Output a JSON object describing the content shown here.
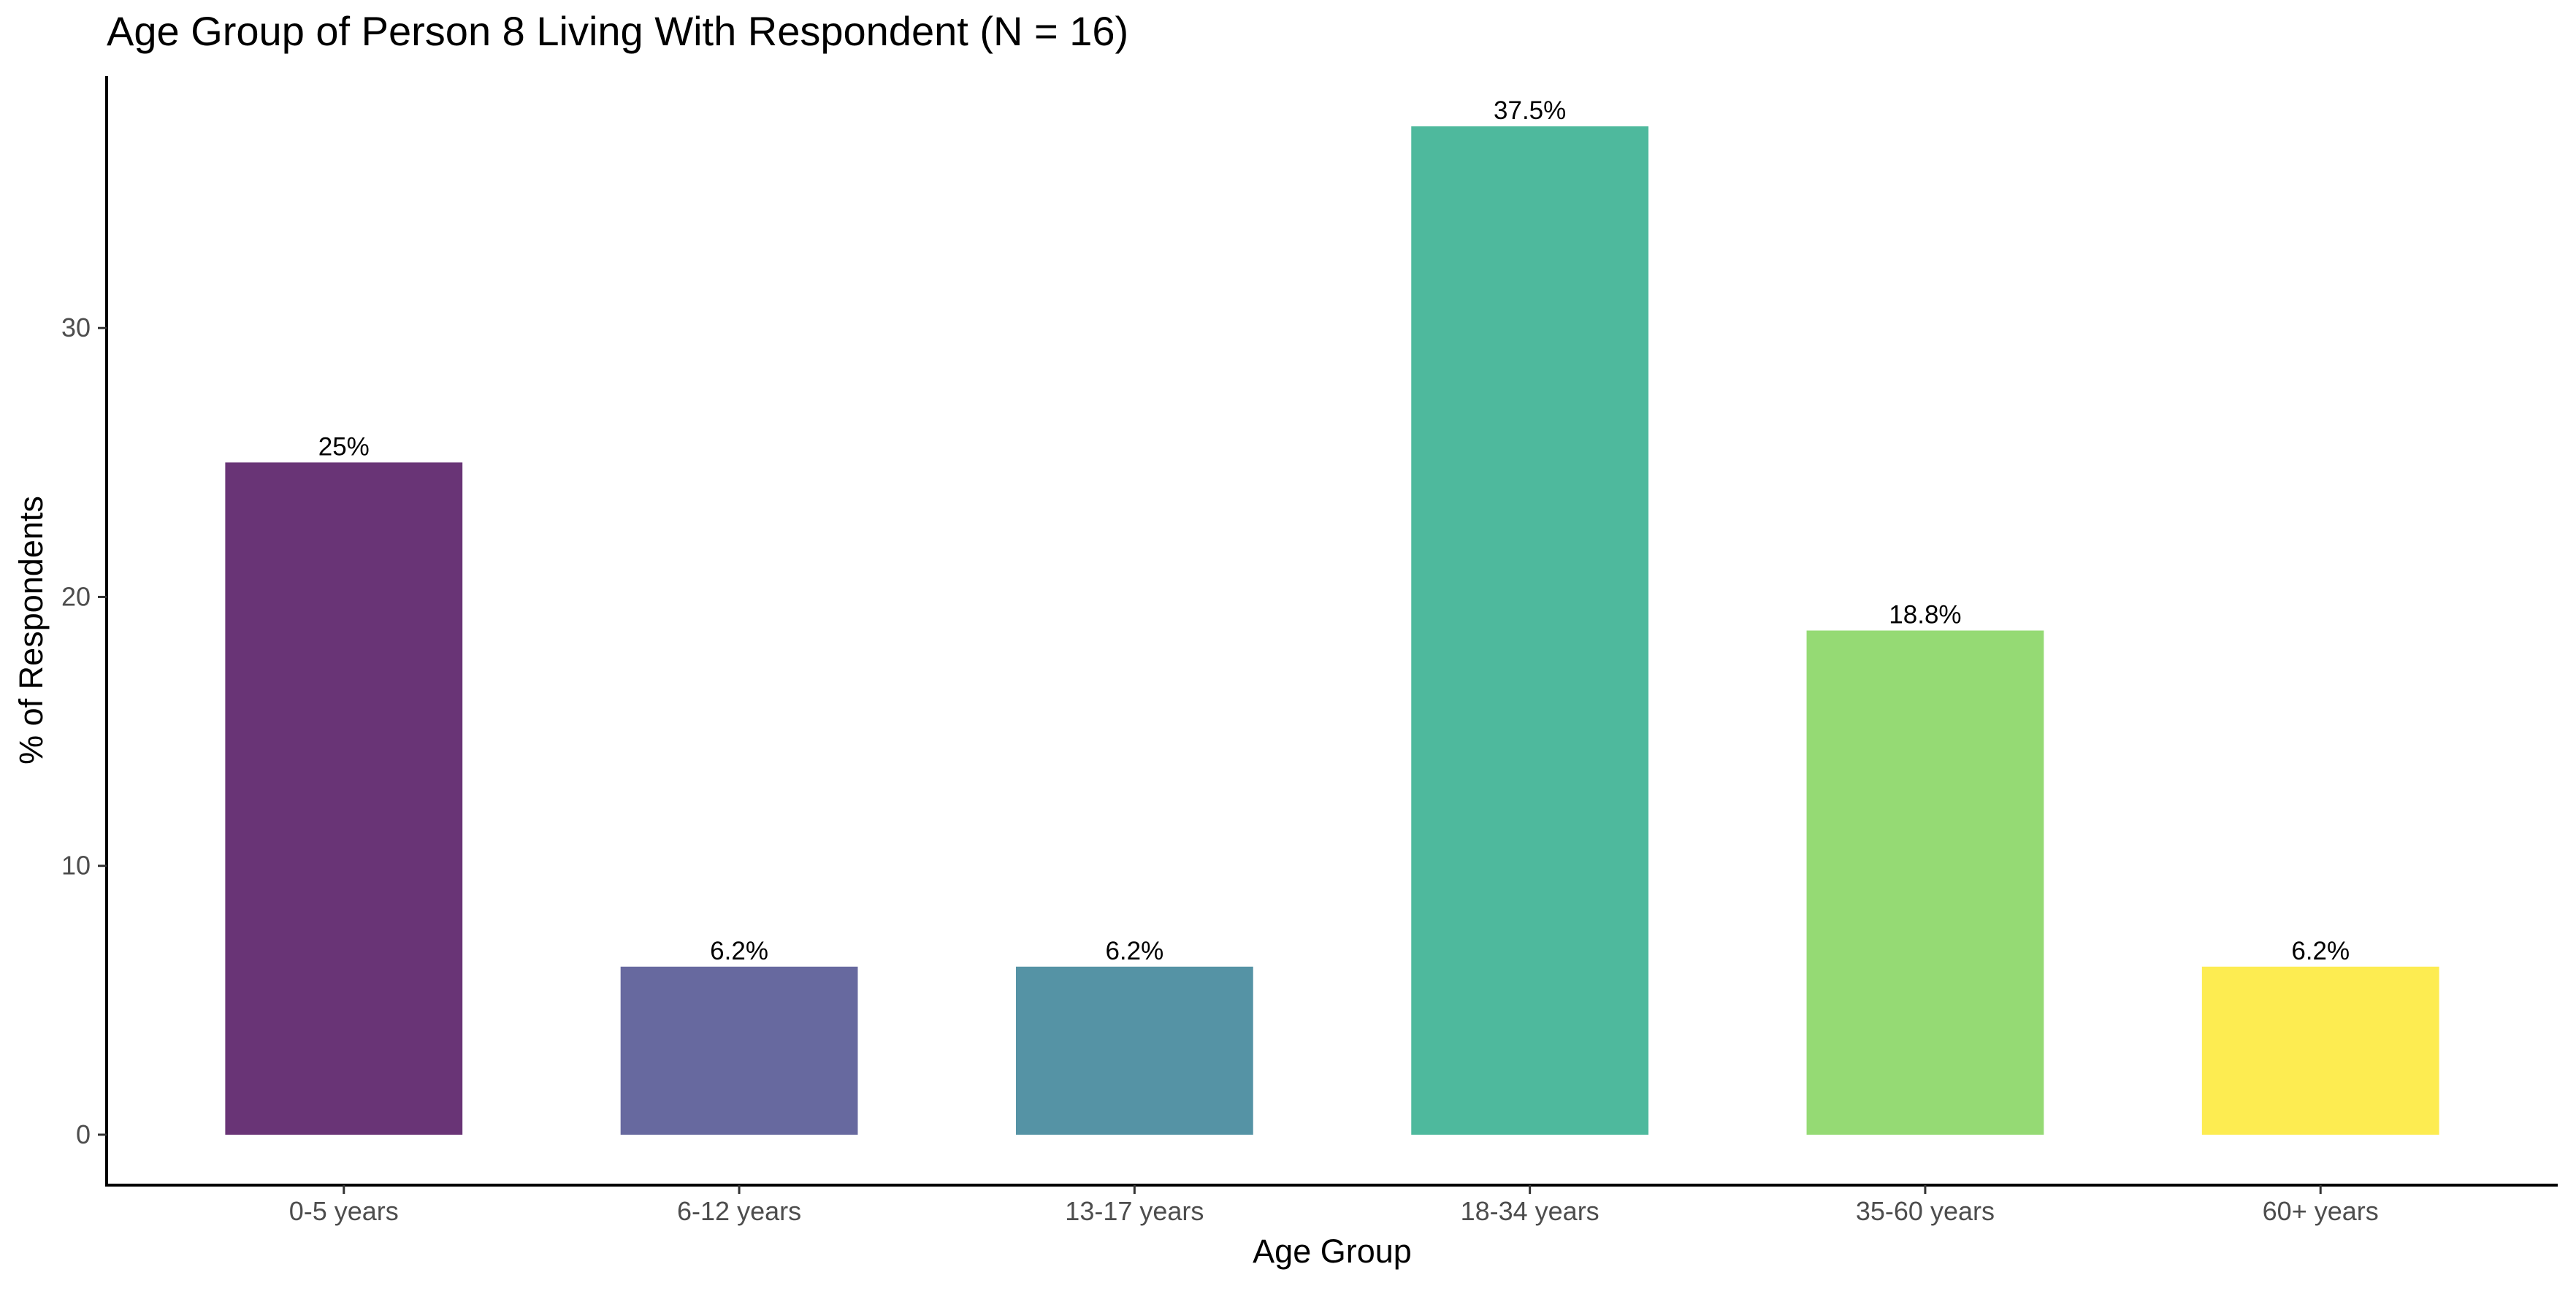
{
  "chart_data": {
    "type": "bar",
    "title": "Age Group of Person 8 Living With Respondent (N = 16)",
    "xlabel": "Age Group",
    "ylabel": "% of Respondents",
    "categories": [
      "0-5 years",
      "6-12 years",
      "13-17 years",
      "18-34 years",
      "35-60 years",
      "60+ years"
    ],
    "values": [
      25,
      6.25,
      6.25,
      37.5,
      18.75,
      6.25
    ],
    "data_labels": [
      "25%",
      "6.2%",
      "6.2%",
      "37.5%",
      "18.8%",
      "6.2%"
    ],
    "colors": [
      "#440154",
      "#414487",
      "#2A788E",
      "#22A884",
      "#7AD151",
      "#FDE725"
    ],
    "bar_opacity": 0.8,
    "yticks": [
      0,
      10,
      20,
      30
    ],
    "ylim": [
      -1.875,
      39.375
    ],
    "grid": false,
    "legend": "none"
  }
}
